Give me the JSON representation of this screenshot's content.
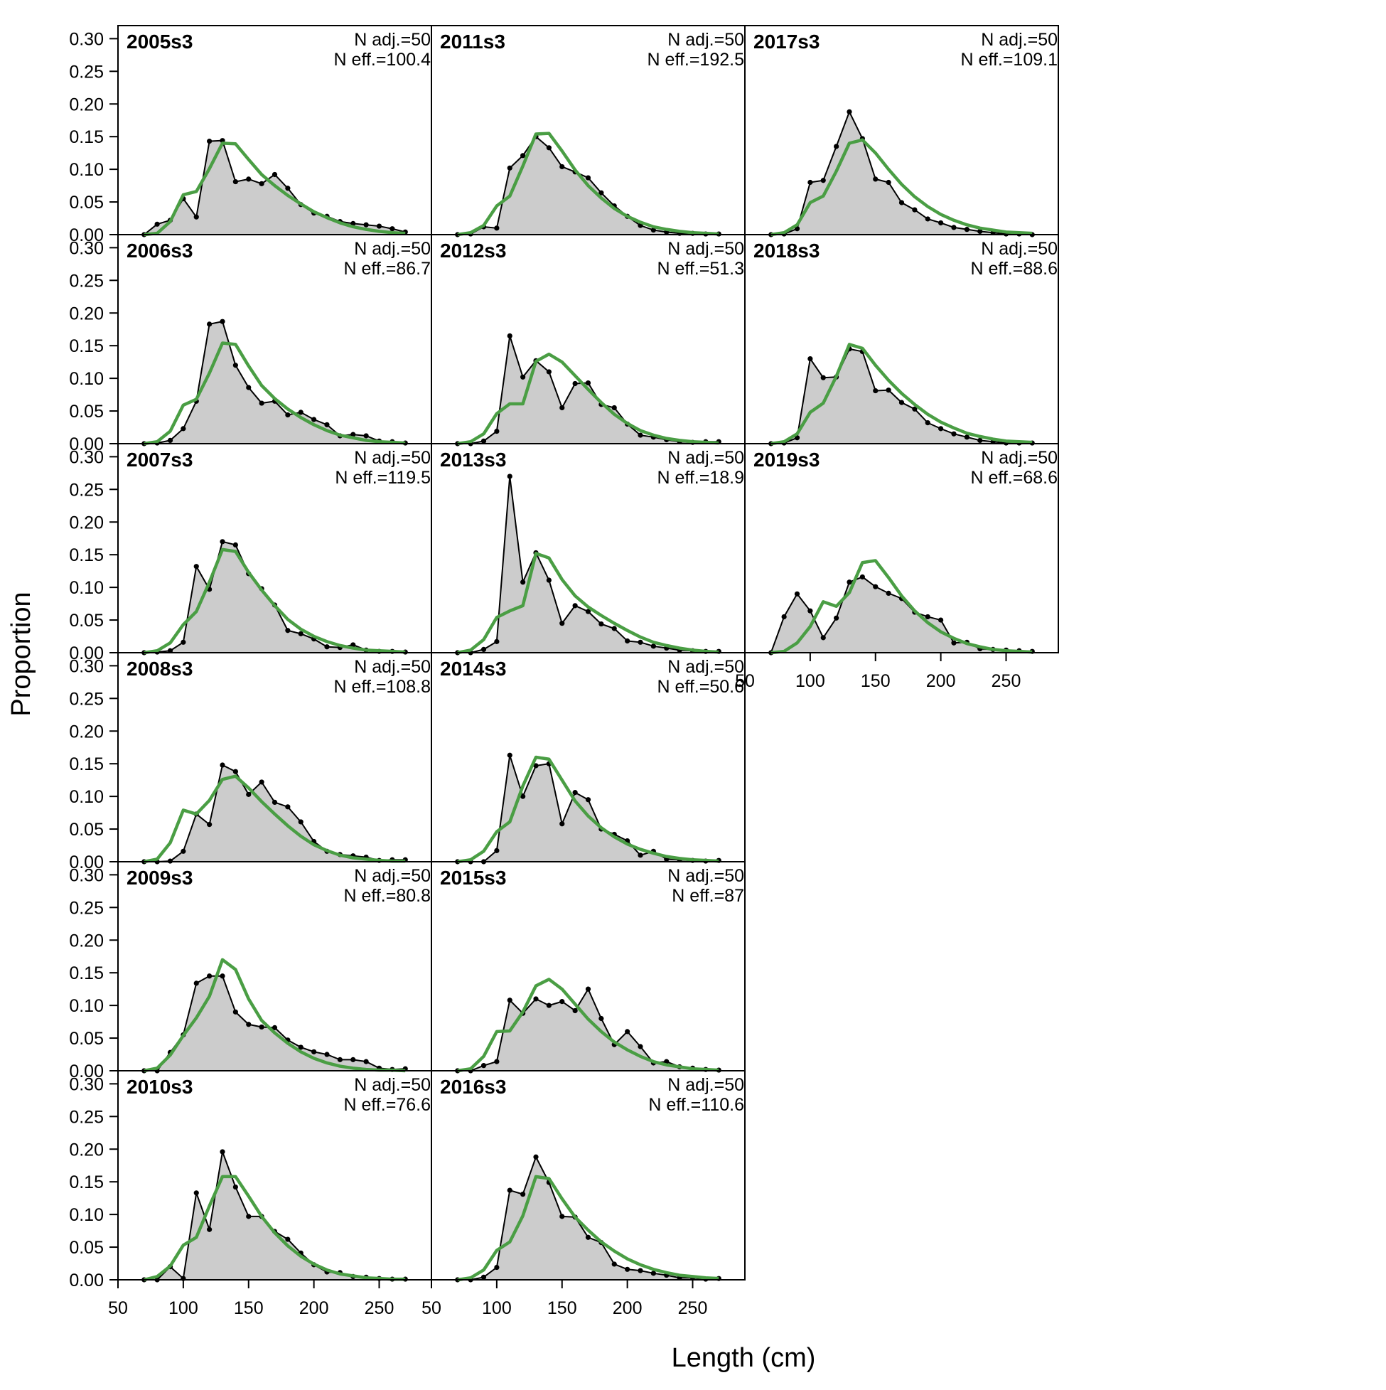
{
  "figure": {
    "xlabel": "Length (cm)",
    "ylabel": "Proportion",
    "x_ticks": [
      50,
      100,
      150,
      200,
      250
    ],
    "y_ticks": [
      "0.00",
      "0.05",
      "0.10",
      "0.15",
      "0.20",
      "0.25",
      "0.30"
    ],
    "colors": {
      "observed_fill": "#cccccc",
      "observed_line": "#000000",
      "expected_line": "#4a9e44",
      "zero_line": "#aaaaaa",
      "frame": "#000000"
    }
  },
  "chart_data": {
    "type": "area",
    "xlabel": "Length (cm)",
    "ylabel": "Proportion",
    "xlim": [
      50,
      290
    ],
    "ylim": [
      0,
      0.32
    ],
    "x": [
      70,
      80,
      90,
      100,
      110,
      120,
      130,
      140,
      150,
      160,
      170,
      180,
      190,
      200,
      210,
      220,
      230,
      240,
      250,
      260,
      270
    ],
    "panels": [
      {
        "label": "2005s3",
        "n_adj": "N adj.=50",
        "n_eff": "N eff.=100.4",
        "obs": [
          0.0,
          0.016,
          0.022,
          0.055,
          0.027,
          0.143,
          0.144,
          0.081,
          0.085,
          0.078,
          0.092,
          0.071,
          0.046,
          0.033,
          0.028,
          0.02,
          0.017,
          0.015,
          0.013,
          0.009,
          0.004
        ],
        "exp": [
          0.0,
          0.002,
          0.02,
          0.061,
          0.066,
          0.101,
          0.14,
          0.139,
          0.115,
          0.092,
          0.075,
          0.06,
          0.047,
          0.035,
          0.026,
          0.018,
          0.012,
          0.008,
          0.005,
          0.003,
          0.002
        ]
      },
      {
        "label": "2006s3",
        "n_adj": "N adj.=50",
        "n_eff": "N eff.=86.7",
        "obs": [
          0.0,
          0.001,
          0.005,
          0.023,
          0.065,
          0.183,
          0.187,
          0.12,
          0.086,
          0.062,
          0.065,
          0.044,
          0.048,
          0.037,
          0.029,
          0.012,
          0.014,
          0.012,
          0.004,
          0.003,
          0.001
        ],
        "exp": [
          0.0,
          0.003,
          0.019,
          0.059,
          0.068,
          0.108,
          0.154,
          0.152,
          0.119,
          0.089,
          0.069,
          0.053,
          0.04,
          0.029,
          0.02,
          0.013,
          0.009,
          0.005,
          0.003,
          0.002,
          0.001
        ]
      },
      {
        "label": "2007s3",
        "n_adj": "N adj.=50",
        "n_eff": "N eff.=119.5",
        "obs": [
          0.0,
          0.001,
          0.003,
          0.016,
          0.132,
          0.097,
          0.17,
          0.165,
          0.121,
          0.098,
          0.073,
          0.034,
          0.029,
          0.021,
          0.009,
          0.008,
          0.012,
          0.004,
          0.002,
          0.002,
          0.001
        ],
        "exp": [
          0.0,
          0.003,
          0.015,
          0.043,
          0.063,
          0.108,
          0.158,
          0.155,
          0.123,
          0.096,
          0.072,
          0.051,
          0.036,
          0.025,
          0.017,
          0.011,
          0.007,
          0.004,
          0.003,
          0.002,
          0.001
        ]
      },
      {
        "label": "2008s3",
        "n_adj": "N adj.=50",
        "n_eff": "N eff.=108.8",
        "obs": [
          0.0,
          0.0,
          0.001,
          0.016,
          0.073,
          0.057,
          0.148,
          0.138,
          0.103,
          0.122,
          0.091,
          0.084,
          0.061,
          0.031,
          0.016,
          0.011,
          0.009,
          0.007,
          0.002,
          0.003,
          0.003
        ],
        "exp": [
          0.0,
          0.004,
          0.029,
          0.079,
          0.073,
          0.094,
          0.126,
          0.131,
          0.113,
          0.092,
          0.073,
          0.055,
          0.039,
          0.026,
          0.017,
          0.01,
          0.006,
          0.004,
          0.002,
          0.001,
          0.001
        ]
      },
      {
        "label": "2009s3",
        "n_adj": "N adj.=50",
        "n_eff": "N eff.=80.8",
        "obs": [
          0.0,
          0.0,
          0.028,
          0.055,
          0.134,
          0.145,
          0.145,
          0.09,
          0.071,
          0.067,
          0.066,
          0.047,
          0.036,
          0.029,
          0.025,
          0.017,
          0.017,
          0.014,
          0.004,
          0.002,
          0.003
        ],
        "exp": [
          0.0,
          0.004,
          0.024,
          0.054,
          0.081,
          0.114,
          0.17,
          0.155,
          0.11,
          0.077,
          0.058,
          0.042,
          0.029,
          0.019,
          0.012,
          0.007,
          0.004,
          0.002,
          0.001,
          0.001,
          0.0
        ]
      },
      {
        "label": "2010s3",
        "n_adj": "N adj.=50",
        "n_eff": "N eff.=76.6",
        "obs": [
          0.0,
          0.0,
          0.02,
          0.002,
          0.133,
          0.077,
          0.196,
          0.142,
          0.097,
          0.097,
          0.074,
          0.062,
          0.041,
          0.023,
          0.012,
          0.011,
          0.005,
          0.004,
          0.002,
          0.001,
          0.001
        ],
        "exp": [
          0.0,
          0.005,
          0.021,
          0.053,
          0.065,
          0.113,
          0.158,
          0.158,
          0.128,
          0.097,
          0.072,
          0.052,
          0.036,
          0.024,
          0.015,
          0.009,
          0.006,
          0.003,
          0.002,
          0.001,
          0.001
        ]
      },
      {
        "label": "2011s3",
        "n_adj": "N adj.=50",
        "n_eff": "N eff.=192.5",
        "obs": [
          0.0,
          0.001,
          0.012,
          0.01,
          0.102,
          0.121,
          0.15,
          0.133,
          0.104,
          0.096,
          0.087,
          0.064,
          0.044,
          0.028,
          0.014,
          0.007,
          0.004,
          0.002,
          0.002,
          0.001,
          0.001
        ],
        "exp": [
          0.0,
          0.003,
          0.014,
          0.044,
          0.059,
          0.105,
          0.154,
          0.155,
          0.128,
          0.099,
          0.075,
          0.056,
          0.04,
          0.028,
          0.019,
          0.012,
          0.008,
          0.005,
          0.003,
          0.002,
          0.001
        ]
      },
      {
        "label": "2012s3",
        "n_adj": "N adj.=50",
        "n_eff": "N eff.=51.3",
        "obs": [
          0.0,
          0.0,
          0.004,
          0.019,
          0.165,
          0.102,
          0.127,
          0.11,
          0.055,
          0.092,
          0.093,
          0.06,
          0.055,
          0.03,
          0.013,
          0.01,
          0.006,
          0.003,
          0.002,
          0.003,
          0.003
        ],
        "exp": [
          0.0,
          0.003,
          0.015,
          0.046,
          0.061,
          0.061,
          0.126,
          0.137,
          0.125,
          0.104,
          0.083,
          0.063,
          0.045,
          0.031,
          0.02,
          0.013,
          0.008,
          0.005,
          0.003,
          0.002,
          0.001
        ]
      },
      {
        "label": "2013s3",
        "n_adj": "N adj.=50",
        "n_eff": "N eff.=18.9",
        "obs": [
          0.0,
          0.0,
          0.005,
          0.017,
          0.27,
          0.108,
          0.153,
          0.111,
          0.045,
          0.072,
          0.063,
          0.044,
          0.037,
          0.018,
          0.016,
          0.01,
          0.007,
          0.004,
          0.003,
          0.002,
          0.002
        ],
        "exp": [
          0.0,
          0.004,
          0.02,
          0.054,
          0.064,
          0.072,
          0.152,
          0.145,
          0.112,
          0.087,
          0.07,
          0.057,
          0.045,
          0.034,
          0.024,
          0.016,
          0.011,
          0.007,
          0.004,
          0.002,
          0.001
        ]
      },
      {
        "label": "2014s3",
        "n_adj": "N adj.=50",
        "n_eff": "N eff.=50.6",
        "obs": [
          0.0,
          0.0,
          0.0,
          0.017,
          0.163,
          0.1,
          0.147,
          0.15,
          0.058,
          0.106,
          0.095,
          0.05,
          0.042,
          0.032,
          0.01,
          0.016,
          0.004,
          0.003,
          0.002,
          0.001,
          0.002
        ],
        "exp": [
          0.0,
          0.003,
          0.016,
          0.046,
          0.061,
          0.116,
          0.16,
          0.157,
          0.125,
          0.093,
          0.07,
          0.052,
          0.038,
          0.027,
          0.019,
          0.013,
          0.008,
          0.005,
          0.003,
          0.002,
          0.001
        ]
      },
      {
        "label": "2015s3",
        "n_adj": "N adj.=50",
        "n_eff": "N eff.=87",
        "obs": [
          0.0,
          0.0,
          0.008,
          0.014,
          0.108,
          0.088,
          0.11,
          0.1,
          0.106,
          0.092,
          0.125,
          0.08,
          0.04,
          0.06,
          0.037,
          0.012,
          0.014,
          0.006,
          0.004,
          0.002,
          0.001
        ],
        "exp": [
          0.0,
          0.003,
          0.022,
          0.06,
          0.061,
          0.09,
          0.13,
          0.14,
          0.125,
          0.102,
          0.079,
          0.06,
          0.044,
          0.032,
          0.022,
          0.014,
          0.009,
          0.006,
          0.003,
          0.002,
          0.001
        ]
      },
      {
        "label": "2016s3",
        "n_adj": "N adj.=50",
        "n_eff": "N eff.=110.6",
        "obs": [
          0.0,
          0.0,
          0.004,
          0.019,
          0.137,
          0.131,
          0.188,
          0.149,
          0.097,
          0.096,
          0.065,
          0.057,
          0.024,
          0.016,
          0.014,
          0.01,
          0.007,
          0.003,
          0.003,
          0.001,
          0.002
        ],
        "exp": [
          0.0,
          0.003,
          0.015,
          0.045,
          0.058,
          0.098,
          0.158,
          0.155,
          0.124,
          0.096,
          0.076,
          0.058,
          0.044,
          0.032,
          0.023,
          0.016,
          0.011,
          0.007,
          0.005,
          0.003,
          0.002
        ]
      },
      {
        "label": "2017s3",
        "n_adj": "N adj.=50",
        "n_eff": "N eff.=109.1",
        "obs": [
          0.0,
          0.001,
          0.009,
          0.08,
          0.083,
          0.135,
          0.188,
          0.147,
          0.085,
          0.08,
          0.049,
          0.038,
          0.024,
          0.018,
          0.011,
          0.008,
          0.005,
          0.003,
          0.001,
          0.001,
          0.0
        ],
        "exp": [
          0.0,
          0.003,
          0.015,
          0.049,
          0.059,
          0.097,
          0.14,
          0.145,
          0.125,
          0.1,
          0.077,
          0.058,
          0.043,
          0.031,
          0.022,
          0.015,
          0.01,
          0.007,
          0.004,
          0.003,
          0.002
        ]
      },
      {
        "label": "2018s3",
        "n_adj": "N adj.=50",
        "n_eff": "N eff.=88.6",
        "obs": [
          0.0,
          0.001,
          0.009,
          0.13,
          0.101,
          0.102,
          0.145,
          0.141,
          0.081,
          0.082,
          0.063,
          0.053,
          0.032,
          0.023,
          0.015,
          0.01,
          0.005,
          0.003,
          0.001,
          0.001,
          0.001
        ],
        "exp": [
          0.0,
          0.003,
          0.015,
          0.048,
          0.062,
          0.103,
          0.152,
          0.146,
          0.12,
          0.097,
          0.077,
          0.06,
          0.045,
          0.033,
          0.024,
          0.016,
          0.011,
          0.007,
          0.004,
          0.003,
          0.002
        ]
      },
      {
        "label": "2019s3",
        "n_adj": "N adj.=50",
        "n_eff": "N eff.=68.6",
        "obs": [
          0.0,
          0.055,
          0.09,
          0.064,
          0.023,
          0.053,
          0.108,
          0.116,
          0.101,
          0.091,
          0.083,
          0.062,
          0.055,
          0.05,
          0.015,
          0.016,
          0.006,
          0.005,
          0.004,
          0.003,
          0.002
        ],
        "exp": [
          0.0,
          0.002,
          0.015,
          0.04,
          0.078,
          0.071,
          0.092,
          0.138,
          0.141,
          0.115,
          0.087,
          0.064,
          0.046,
          0.032,
          0.022,
          0.014,
          0.009,
          0.005,
          0.003,
          0.002,
          0.001
        ]
      }
    ]
  }
}
